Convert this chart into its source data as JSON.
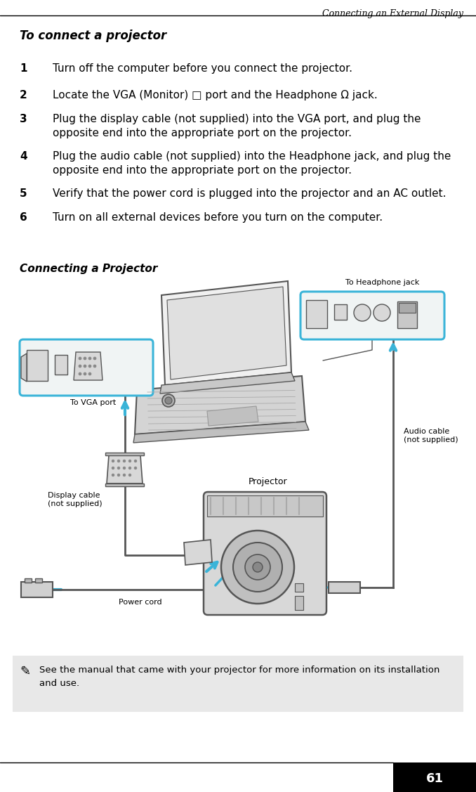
{
  "page_bg": "#ffffff",
  "header_text": "Connecting an External Display",
  "title_text": "To connect a projector",
  "steps": [
    {
      "num": "1",
      "text": "Turn off the computer before you connect the projector."
    },
    {
      "num": "2",
      "text": "Locate the VGA (Monitor) □ port and the Headphone Ω jack."
    },
    {
      "num": "3",
      "text": "Plug the display cable (not supplied) into the VGA port, and plug the\nopposite end into the appropriate port on the projector."
    },
    {
      "num": "4",
      "text": "Plug the audio cable (not supplied) into the Headphone jack, and plug the\nopposite end into the appropriate port on the projector."
    },
    {
      "num": "5",
      "text": "Verify that the power cord is plugged into the projector and an AC outlet."
    },
    {
      "num": "6",
      "text": "Turn on all external devices before you turn on the computer."
    }
  ],
  "section_title": "Connecting a Projector",
  "note_bg": "#e8e8e8",
  "note_text": "See the manual that came with your projector for more information on its installation\nand use.",
  "page_num": "61",
  "cyan": "#3ab4d8",
  "dark": "#555555",
  "light_gray": "#d8d8d8",
  "mid_gray": "#b8b8b8",
  "box_gray": "#e8e8e8"
}
